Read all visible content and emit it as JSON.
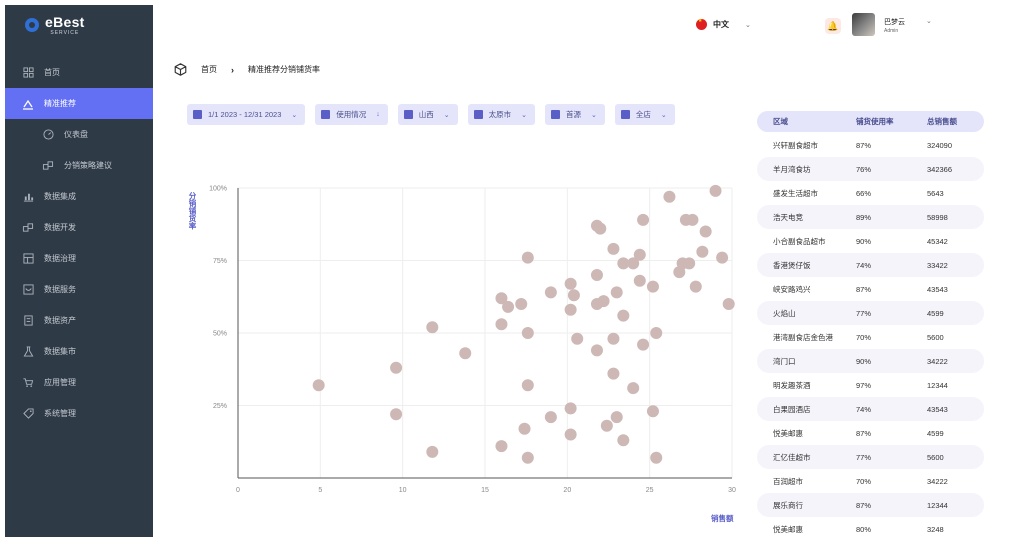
{
  "app": {
    "logo_text": "eBest",
    "logo_sub": "SERVICE"
  },
  "sidebar": {
    "items": [
      {
        "label": "首页",
        "icon": "grid-icon",
        "active": false,
        "sub": false
      },
      {
        "label": "精准推荐",
        "icon": "recommend-icon",
        "active": true,
        "sub": false
      },
      {
        "label": "仪表盘",
        "icon": "dashboard-icon",
        "active": false,
        "sub": true
      },
      {
        "label": "分销策略建议",
        "icon": "strategy-icon",
        "active": false,
        "sub": true
      },
      {
        "label": "数据集成",
        "icon": "bar-chart-icon",
        "active": false,
        "sub": false
      },
      {
        "label": "数据开发",
        "icon": "dev-icon",
        "active": false,
        "sub": false
      },
      {
        "label": "数据治理",
        "icon": "govern-icon",
        "active": false,
        "sub": false
      },
      {
        "label": "数据服务",
        "icon": "service-icon",
        "active": false,
        "sub": false
      },
      {
        "label": "数据资产",
        "icon": "asset-icon",
        "active": false,
        "sub": false
      },
      {
        "label": "数据集市",
        "icon": "flask-icon",
        "active": false,
        "sub": false
      },
      {
        "label": "应用管理",
        "icon": "cart-icon",
        "active": false,
        "sub": false
      },
      {
        "label": "系统管理",
        "icon": "tag-icon",
        "active": false,
        "sub": false
      }
    ]
  },
  "header": {
    "language": "中文",
    "user_name": "巴梦云",
    "user_role": "Admin"
  },
  "breadcrumb": {
    "home": "首页",
    "current": "精准推荐分销铺货率"
  },
  "filters": [
    {
      "label": "1/1 2023 - 12/31 2023",
      "chev": "⌄"
    },
    {
      "label": "使用情况",
      "chev": "↓"
    },
    {
      "label": "山西",
      "chev": "⌄"
    },
    {
      "label": "太原市",
      "chev": "⌄"
    },
    {
      "label": "首源",
      "chev": "⌄"
    },
    {
      "label": "全店",
      "chev": "⌄"
    }
  ],
  "chart_data": {
    "type": "scatter",
    "xlabel": "销售额",
    "ylabel": "分销铺货率",
    "xlim": [
      0,
      30
    ],
    "ylim": [
      0,
      100
    ],
    "x_ticks": [
      "0",
      "5",
      "10",
      "15",
      "20",
      "25",
      "30"
    ],
    "y_ticks": [
      "25%",
      "50%",
      "75%",
      "100%"
    ],
    "grid": true,
    "color": "#cdb8b6",
    "points": [
      [
        4.9,
        32
      ],
      [
        9.6,
        38
      ],
      [
        9.6,
        22
      ],
      [
        11.8,
        52
      ],
      [
        11.8,
        9
      ],
      [
        13.8,
        43
      ],
      [
        16.0,
        62
      ],
      [
        16.0,
        53
      ],
      [
        16.0,
        11
      ],
      [
        16.4,
        59
      ],
      [
        17.2,
        60
      ],
      [
        17.4,
        17
      ],
      [
        17.6,
        76
      ],
      [
        17.6,
        50
      ],
      [
        17.6,
        32
      ],
      [
        17.6,
        7
      ],
      [
        19.0,
        64
      ],
      [
        19.0,
        21
      ],
      [
        20.2,
        67
      ],
      [
        20.2,
        58
      ],
      [
        20.2,
        24
      ],
      [
        20.2,
        15
      ],
      [
        20.4,
        63
      ],
      [
        20.6,
        48
      ],
      [
        21.8,
        70
      ],
      [
        21.8,
        87
      ],
      [
        22.0,
        86
      ],
      [
        21.8,
        60
      ],
      [
        22.2,
        61
      ],
      [
        21.8,
        44
      ],
      [
        22.4,
        18
      ],
      [
        22.8,
        79
      ],
      [
        22.8,
        48
      ],
      [
        22.8,
        36
      ],
      [
        23.0,
        64
      ],
      [
        23.0,
        21
      ],
      [
        23.4,
        74
      ],
      [
        23.4,
        56
      ],
      [
        23.4,
        13
      ],
      [
        24.0,
        74
      ],
      [
        24.0,
        31
      ],
      [
        24.4,
        77
      ],
      [
        24.6,
        89
      ],
      [
        24.4,
        68
      ],
      [
        24.6,
        46
      ],
      [
        25.2,
        66
      ],
      [
        25.2,
        23
      ],
      [
        25.4,
        50
      ],
      [
        25.4,
        7
      ],
      [
        26.2,
        97
      ],
      [
        26.8,
        71
      ],
      [
        27.0,
        74
      ],
      [
        27.2,
        89
      ],
      [
        27.4,
        74
      ],
      [
        27.6,
        89
      ],
      [
        27.8,
        66
      ],
      [
        28.2,
        78
      ],
      [
        28.4,
        85
      ],
      [
        29.0,
        99
      ],
      [
        29.4,
        76
      ],
      [
        29.8,
        60
      ]
    ]
  },
  "table": {
    "headers": [
      "区域",
      "铺货使用率",
      "总销售额"
    ],
    "rows": [
      [
        "兴轩副食超市",
        "87%",
        "324090"
      ],
      [
        "羊月湾食坊",
        "76%",
        "342366"
      ],
      [
        "盛发生活超市",
        "66%",
        "5643"
      ],
      [
        "浩天电竞",
        "89%",
        "58998"
      ],
      [
        "小合副食品超市",
        "90%",
        "45342"
      ],
      [
        "香港煲仔饭",
        "74%",
        "33422"
      ],
      [
        "峡安路鸡兴",
        "87%",
        "43543"
      ],
      [
        "火焰山",
        "77%",
        "4599"
      ],
      [
        "港湾副食店金色港",
        "70%",
        "5600"
      ],
      [
        "湾门口",
        "90%",
        "34222"
      ],
      [
        "明发趣茶酒",
        "97%",
        "12344"
      ],
      [
        "白果园酒店",
        "74%",
        "43543"
      ],
      [
        "悦美邮惠",
        "87%",
        "4599"
      ],
      [
        "汇亿佳超市",
        "77%",
        "5600"
      ],
      [
        "百润超市",
        "70%",
        "34222"
      ],
      [
        "展乐商行",
        "87%",
        "12344"
      ],
      [
        "悦美邮惠",
        "80%",
        "3248"
      ]
    ]
  }
}
